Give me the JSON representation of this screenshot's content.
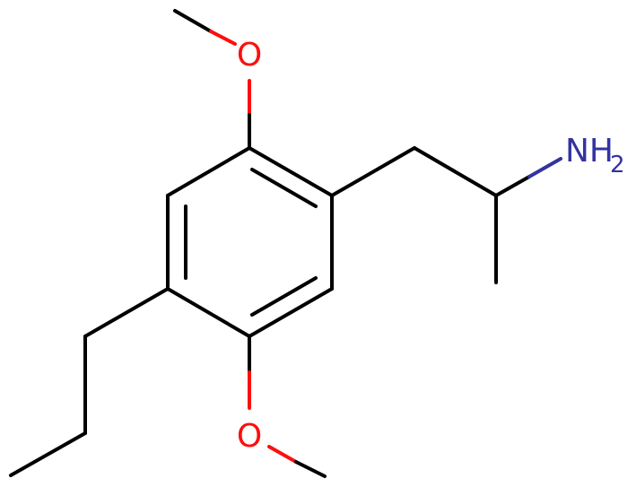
{
  "molecule": {
    "atoms": {
      "oxygen_top": "O",
      "oxygen_bottom": "O",
      "amine": "NH",
      "amine_subscript": "2"
    },
    "colors": {
      "carbon_bond": "#000000",
      "oxygen": "#ff0d0d",
      "nitrogen": "#3333a0"
    }
  }
}
